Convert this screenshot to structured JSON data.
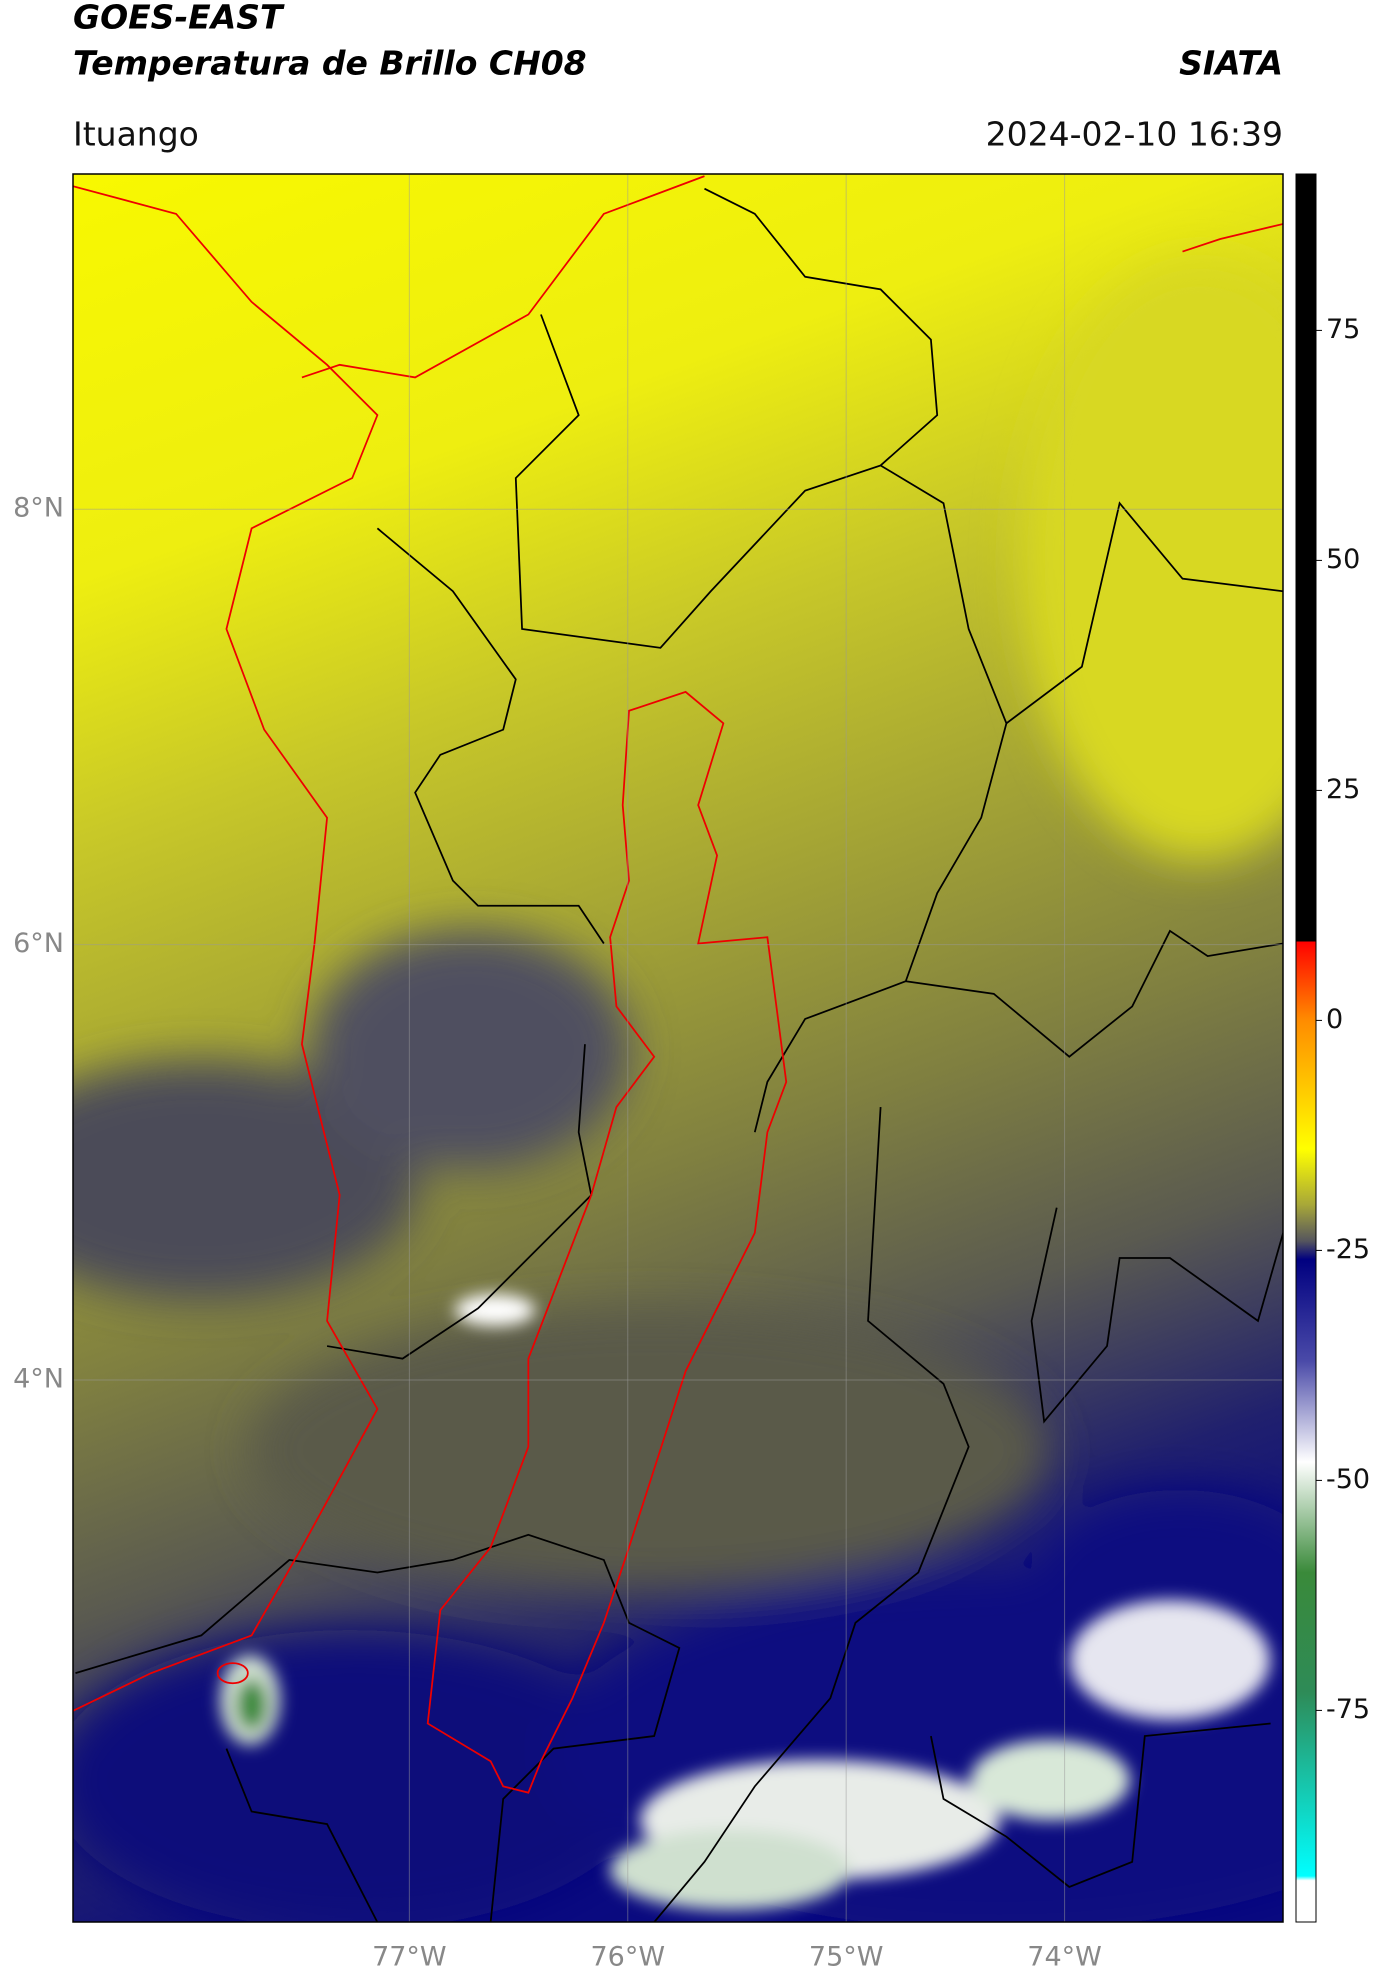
{
  "header": {
    "title": "GOES-EAST",
    "subtitle": "Temperatura de Brillo CH08",
    "agency": "SIATA",
    "region": "Ituango",
    "datetime": "2024-02-10 16:39"
  },
  "chart_data": {
    "type": "map",
    "xlim": [
      -78.54,
      -73.0
    ],
    "ylim": [
      1.51,
      9.54
    ],
    "xticks": [
      {
        "value": -77,
        "label": "77°W"
      },
      {
        "value": -76,
        "label": "76°W"
      },
      {
        "value": -75,
        "label": "75°W"
      },
      {
        "value": -74,
        "label": "74°W"
      }
    ],
    "yticks": [
      {
        "value": 8,
        "label": "8°N"
      },
      {
        "value": 6,
        "label": "6°N"
      },
      {
        "value": 4,
        "label": "4°N"
      }
    ],
    "grid": true,
    "colorbar": {
      "lim": [
        -98,
        92
      ],
      "ticks": [
        75,
        50,
        25,
        0,
        -25,
        -50,
        -75
      ],
      "colormap": [
        [
          92,
          "#000000"
        ],
        [
          8.6,
          "#000000"
        ],
        [
          8.6,
          "#ff0000"
        ],
        [
          0,
          "#ff8c00"
        ],
        [
          -14,
          "#ffff00"
        ],
        [
          -20,
          "#a8a838"
        ],
        [
          -24,
          "#55555e"
        ],
        [
          -26,
          "#000080"
        ],
        [
          -37,
          "#4a4aa8"
        ],
        [
          -48,
          "#ffffff"
        ],
        [
          -60,
          "#3a8a3a"
        ],
        [
          -73,
          "#2e8b57"
        ],
        [
          -93,
          "#00ffff"
        ],
        [
          -93.5,
          "#ffffff"
        ],
        [
          -98,
          "#ffffff"
        ]
      ]
    }
  }
}
